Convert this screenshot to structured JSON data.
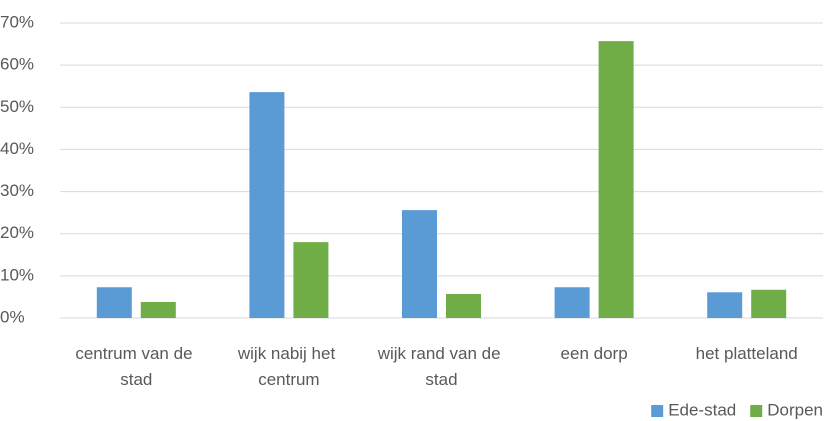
{
  "chart_data": {
    "type": "bar",
    "categories": [
      "centrum van de stad",
      "wijk nabij het centrum",
      "wijk rand van de stad",
      "een dorp",
      "het platteland"
    ],
    "series": [
      {
        "name": "Ede-stad",
        "color": "#5b9bd5",
        "values": [
          7.3,
          53.6,
          25.6,
          7.3,
          6.1
        ]
      },
      {
        "name": "Dorpen",
        "color": "#70ad47",
        "values": [
          3.8,
          18.0,
          5.7,
          65.7,
          6.7
        ]
      }
    ],
    "ylim": [
      0,
      70
    ],
    "yticks": [
      {
        "value": 0,
        "label": "0%"
      },
      {
        "value": 10,
        "label": "10%"
      },
      {
        "value": 20,
        "label": "20%"
      },
      {
        "value": 30,
        "label": "30%"
      },
      {
        "value": 40,
        "label": "40%"
      },
      {
        "value": 50,
        "label": "50%"
      },
      {
        "value": 60,
        "label": "60%"
      },
      {
        "value": 70,
        "label": "70%"
      }
    ],
    "grid": true,
    "legend": "bottom-right"
  }
}
